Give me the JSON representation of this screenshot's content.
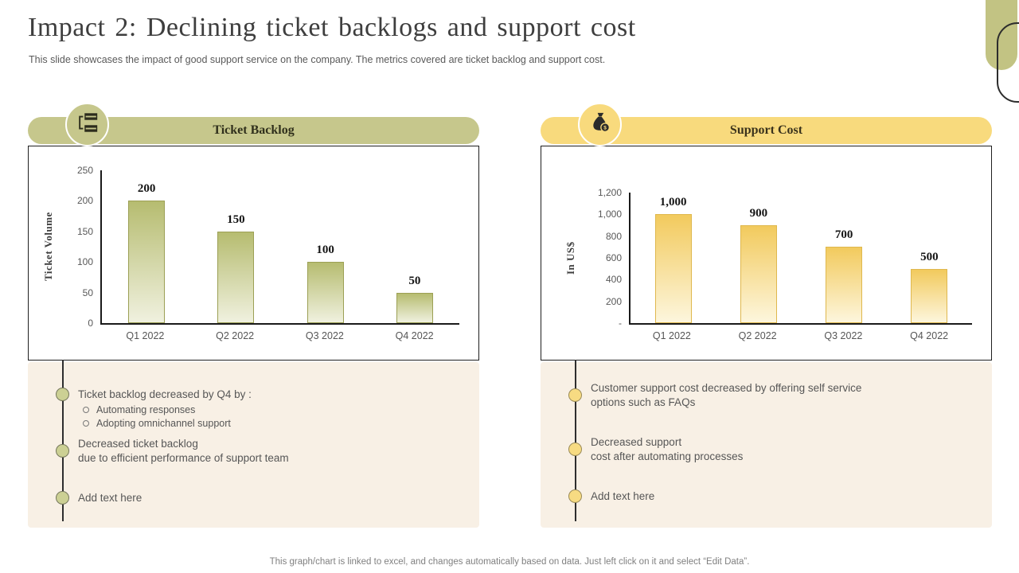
{
  "slide": {
    "title": "Impact 2: Declining ticket backlogs and support cost",
    "subtitle": "This slide showcases the impact of good support service on the company. The metrics covered are ticket backlog and support cost.",
    "footer": "This graph/chart is linked to excel,  and changes automatically based on data. Just left click on it and select “Edit Data”."
  },
  "colors": {
    "olive_accent": "#c2c383",
    "yellow_accent": "#f8da7d",
    "notes_panel_bg": "#f8f0e5",
    "axis_line": "#1a1a1a",
    "body_text": "#565656"
  },
  "panels": {
    "left": {
      "header": "Ticket Backlog",
      "icon": "clipboard-list-icon",
      "notes": [
        {
          "lines": [
            "Ticket backlog decreased by Q4 by :"
          ],
          "sub": [
            "Automating responses",
            "Adopting omnichannel support"
          ],
          "placeholder": false
        },
        {
          "lines": [
            "Decreased ticket backlog",
            "due to efficient performance of support team"
          ],
          "placeholder": false
        },
        {
          "lines": [
            "Add text here"
          ],
          "placeholder": true
        }
      ]
    },
    "right": {
      "header": "Support Cost",
      "icon": "money-bag-icon",
      "notes": [
        {
          "lines": [
            "Customer support cost decreased by offering self service",
            "options such as FAQs"
          ],
          "placeholder": false
        },
        {
          "lines": [
            "Decreased support",
            "cost after automating processes"
          ],
          "placeholder": false
        },
        {
          "lines": [
            "Add text here"
          ],
          "placeholder": true
        }
      ]
    }
  },
  "chart_data": [
    {
      "type": "bar",
      "title": "Ticket Backlog",
      "categories": [
        "Q1 2022",
        "Q2 2022",
        "Q3 2022",
        "Q4 2022"
      ],
      "values": [
        200,
        150,
        100,
        50
      ],
      "value_labels": [
        "200",
        "150",
        "100",
        "50"
      ],
      "xlabel": "",
      "ylabel": "Ticket Volume",
      "ylim": [
        0,
        250
      ],
      "grid": false,
      "legend": "none",
      "yticks": [
        {
          "label": "250",
          "value": 250
        },
        {
          "label": "200",
          "value": 200
        },
        {
          "label": "150",
          "value": 150
        },
        {
          "label": "100",
          "value": 100
        },
        {
          "label": "50",
          "value": 50
        },
        {
          "label": "0",
          "value": 0
        }
      ],
      "bar_color_top": "#b6bc70",
      "bar_color_bottom": "#f0f1df",
      "bar_border": "#9ca055"
    },
    {
      "type": "bar",
      "title": "Support Cost",
      "categories": [
        "Q1 2022",
        "Q2 2022",
        "Q3 2022",
        "Q4 2022"
      ],
      "values": [
        1000,
        900,
        700,
        500
      ],
      "value_labels": [
        "1,000",
        "900",
        "700",
        "500"
      ],
      "xlabel": "",
      "ylabel": "In US$",
      "ylim": [
        0,
        1200
      ],
      "grid": false,
      "legend": "none",
      "yticks": [
        {
          "label": "1,200",
          "value": 1200
        },
        {
          "label": "1,000",
          "value": 1000
        },
        {
          "label": "800",
          "value": 800
        },
        {
          "label": "600",
          "value": 600
        },
        {
          "label": "400",
          "value": 400
        },
        {
          "label": "200",
          "value": 200
        },
        {
          "label": "-",
          "value": 0
        }
      ],
      "bar_color_top": "#f2ca5d",
      "bar_color_bottom": "#fdf6dd",
      "bar_border": "#dfb84e"
    }
  ]
}
